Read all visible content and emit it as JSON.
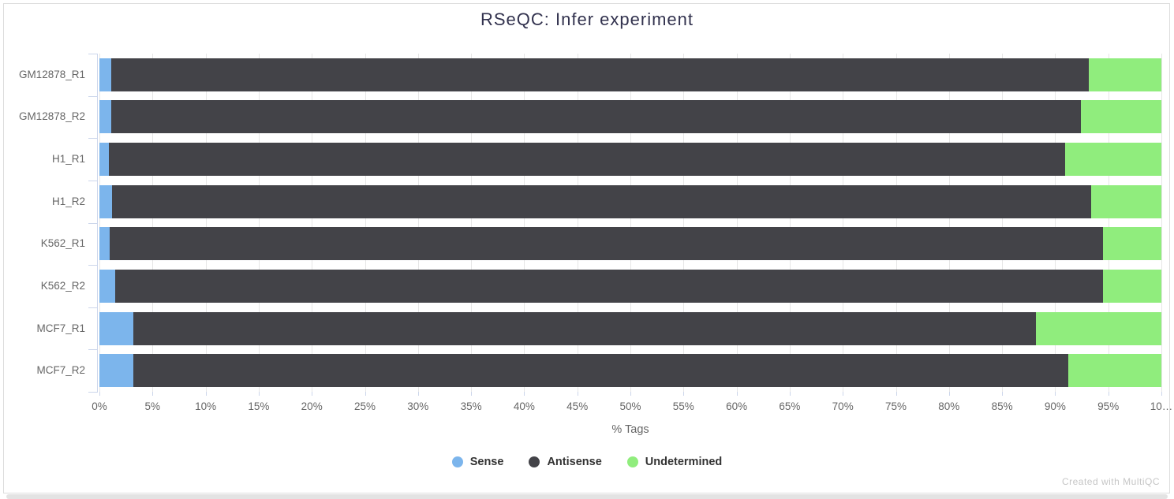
{
  "chart_data": {
    "type": "bar",
    "orientation": "horizontal",
    "stacked": true,
    "title": "RSeQC: Infer experiment",
    "xlabel": "% Tags",
    "xlim": [
      0,
      100
    ],
    "grid": true,
    "legend_position": "bottom",
    "x_tick_step": 5,
    "x_tick_labels": [
      "0%",
      "5%",
      "10%",
      "15%",
      "20%",
      "25%",
      "30%",
      "35%",
      "40%",
      "45%",
      "50%",
      "55%",
      "60%",
      "65%",
      "70%",
      "75%",
      "80%",
      "85%",
      "90%",
      "95%",
      "10…"
    ],
    "categories": [
      "GM12878_R1",
      "GM12878_R2",
      "H1_R1",
      "H1_R2",
      "K562_R1",
      "K562_R2",
      "MCF7_R1",
      "MCF7_R2"
    ],
    "series": [
      {
        "name": "Sense",
        "color": "#7cb5ec",
        "values": [
          1.1,
          1.1,
          0.9,
          1.2,
          1.0,
          1.5,
          3.2,
          3.2
        ]
      },
      {
        "name": "Antisense",
        "color": "#434348",
        "values": [
          92.1,
          91.3,
          90.0,
          92.2,
          93.5,
          93.0,
          85.0,
          88.0
        ]
      },
      {
        "name": "Undetermined",
        "color": "#90ed7d",
        "values": [
          6.8,
          7.6,
          9.1,
          6.6,
          5.5,
          5.5,
          11.8,
          8.8
        ]
      }
    ]
  },
  "footer": {
    "watermark": "Created with MultiQC"
  },
  "colors": {
    "gridline": "#e6e6e6",
    "axis_tick": "#ccd6eb",
    "tick_label": "#666666",
    "category_label": "#666666",
    "title": "#32324e",
    "legend_text": "#333333",
    "watermark": "#c6c6c6"
  }
}
